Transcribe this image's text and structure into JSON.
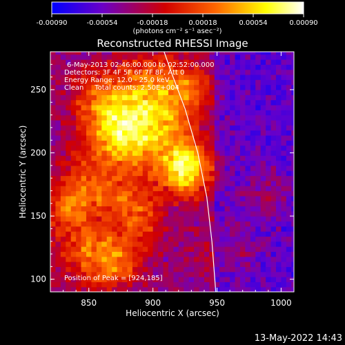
{
  "colorbar": {
    "ticks": [
      "-0.00090",
      "-0.00054",
      "-0.00018",
      "0.00018",
      "0.00054",
      "0.00090"
    ],
    "units": "(photons cm⁻² s⁻¹ asec⁻²)",
    "range": [
      -0.0009,
      0.0009
    ],
    "colors": [
      "#0000ff",
      "#6a00c8",
      "#d20000",
      "#ff6600",
      "#ffff00",
      "#ffffff"
    ]
  },
  "chart_data": {
    "type": "heatmap",
    "title": "Reconstructed RHESSI Image",
    "xlabel": "Heliocentric X (arcsec)",
    "ylabel": "Heliocentric Y (arcsec)",
    "xlim": [
      820,
      1010
    ],
    "ylim": [
      90,
      280
    ],
    "x_ticks": [
      850,
      900,
      950,
      1000
    ],
    "y_ticks": [
      100,
      150,
      200,
      250
    ],
    "x_tick_labels": [
      "850",
      "900",
      "950",
      "1000"
    ],
    "y_tick_labels": [
      "100",
      "150",
      "200",
      "250"
    ],
    "info_lines": [
      "6-May-2013 02:46:00.000 to 02:52:00.000",
      "Detectors: 3F 4F 5F 6F 7F 8F, Att 0",
      "Energy Range: 12.0 - 25.0 keV",
      "Clean     Total counts: 2.50E+004"
    ],
    "peak_label": "Position of Peak = [924,185]",
    "peak": [
      924,
      185
    ],
    "limb_curve": [
      [
        908,
        282
      ],
      [
        915,
        262
      ],
      [
        925,
        235
      ],
      [
        935,
        200
      ],
      [
        942,
        165
      ],
      [
        946,
        130
      ],
      [
        949,
        90
      ]
    ]
  },
  "footer": {
    "date": "13-May-2022 14:43"
  }
}
